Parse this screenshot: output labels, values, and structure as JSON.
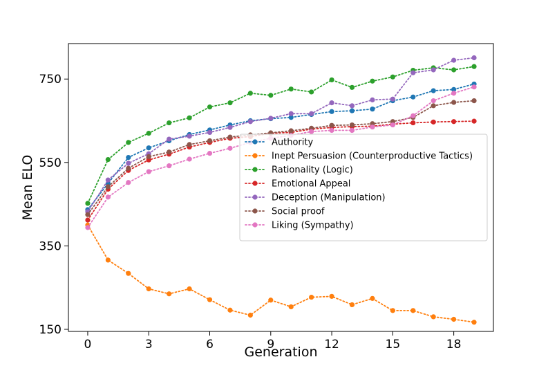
{
  "chart_data": {
    "type": "line",
    "title": "",
    "xlabel": "Generation",
    "ylabel": "Mean ELO",
    "xlim": [
      -0.95,
      19.95
    ],
    "ylim": [
      145,
      835
    ],
    "xticks": [
      0,
      3,
      6,
      9,
      12,
      15,
      18
    ],
    "yticks": [
      150,
      350,
      550,
      750
    ],
    "grid": false,
    "legend_position": "center-right",
    "line_style": "dotted",
    "x": [
      0,
      1,
      2,
      3,
      4,
      5,
      6,
      7,
      8,
      9,
      10,
      11,
      12,
      13,
      14,
      15,
      16,
      17,
      18,
      19
    ],
    "series": [
      {
        "name": "Authority",
        "color": "#1f77b4",
        "values": [
          437,
          500,
          562,
          585,
          602,
          617,
          628,
          640,
          650,
          655,
          658,
          665,
          672,
          674,
          678,
          698,
          707,
          722,
          725,
          738
        ]
      },
      {
        "name": "Inept Persuasion (Counterproductive Tactics)",
        "color": "#ff7f0e",
        "values": [
          400,
          316,
          284,
          247,
          235,
          247,
          221,
          196,
          184,
          220,
          204,
          227,
          229,
          209,
          224,
          195,
          195,
          180,
          174,
          167
        ]
      },
      {
        "name": "Rationality (Logic)",
        "color": "#2ca02c",
        "values": [
          452,
          557,
          598,
          620,
          645,
          657,
          683,
          693,
          716,
          711,
          726,
          719,
          748,
          730,
          745,
          755,
          771,
          777,
          772,
          780
        ]
      },
      {
        "name": "Emotional Appeal",
        "color": "#d62728",
        "values": [
          412,
          486,
          531,
          556,
          570,
          587,
          598,
          608,
          612,
          620,
          622,
          630,
          634,
          636,
          637,
          642,
          645,
          647,
          648,
          649
        ]
      },
      {
        "name": "Deception (Manipulation)",
        "color": "#9467bd",
        "values": [
          432,
          508,
          548,
          571,
          606,
          613,
          622,
          634,
          648,
          656,
          667,
          667,
          693,
          686,
          700,
          702,
          765,
          772,
          795,
          801
        ]
      },
      {
        "name": "Social proof",
        "color": "#8c564b",
        "values": [
          425,
          492,
          536,
          564,
          575,
          593,
          602,
          611,
          616,
          621,
          626,
          632,
          639,
          640,
          643,
          648,
          658,
          686,
          694,
          698
        ]
      },
      {
        "name": "Liking (Sympathy)",
        "color": "#e377c2",
        "values": [
          394,
          467,
          502,
          528,
          542,
          558,
          572,
          584,
          598,
          608,
          615,
          624,
          627,
          627,
          635,
          640,
          662,
          698,
          716,
          731
        ]
      }
    ]
  }
}
